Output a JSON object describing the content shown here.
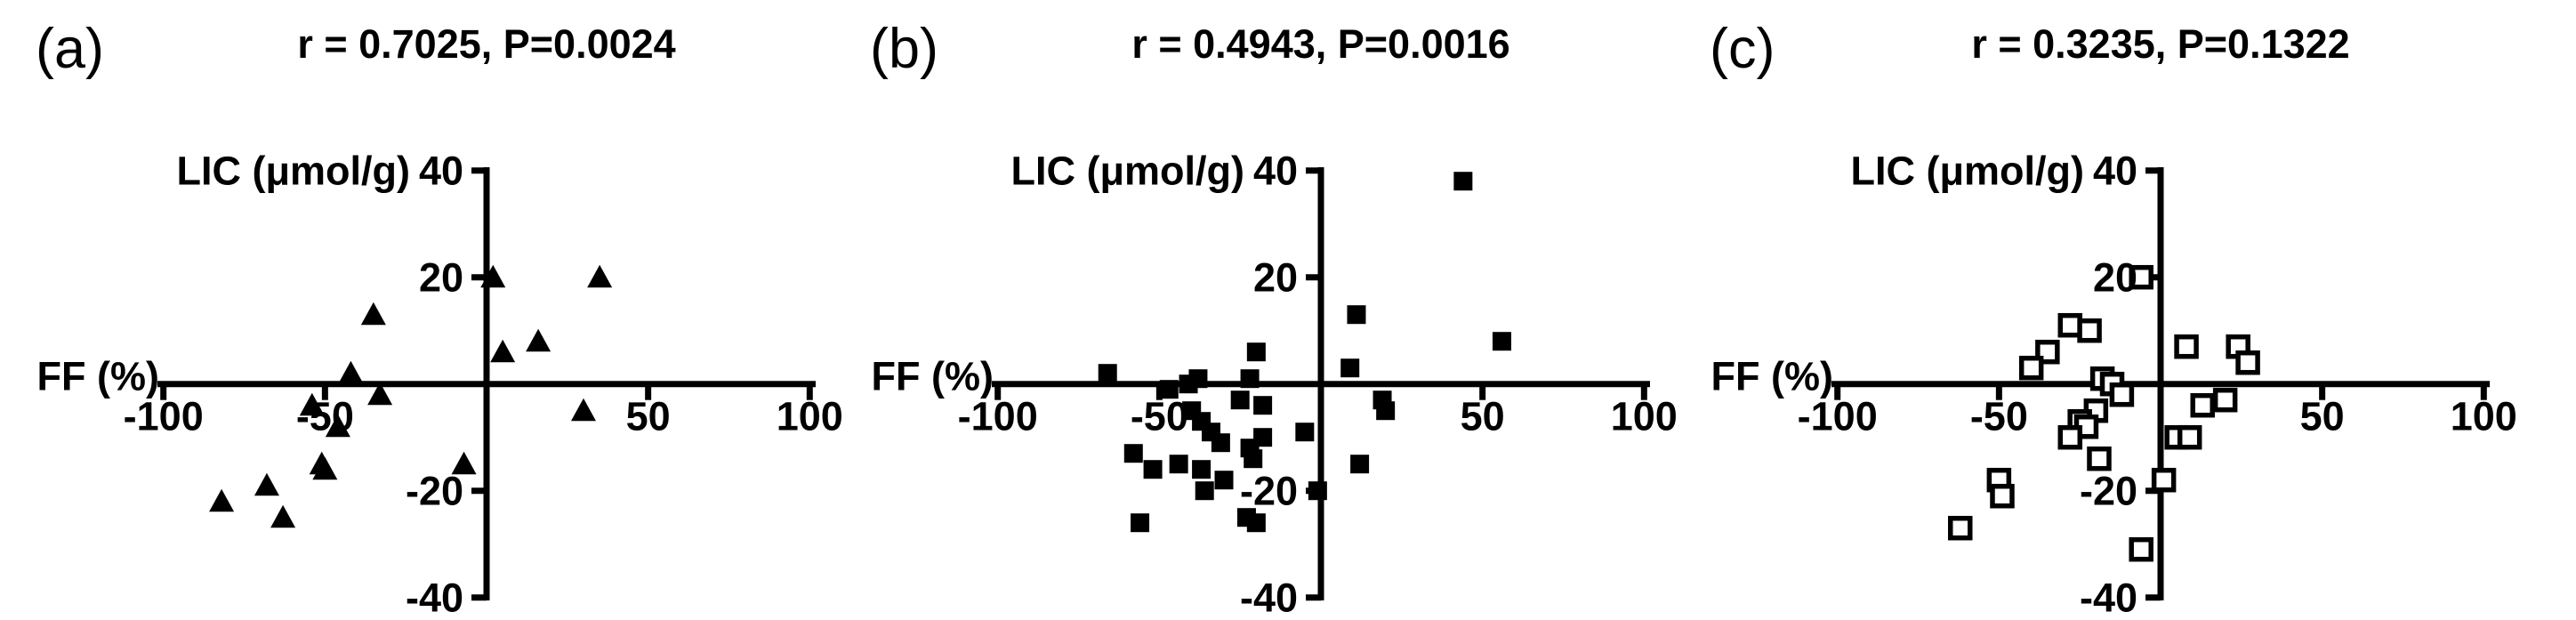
{
  "figure": {
    "background_color": "#ffffff",
    "ink_color": "#000000"
  },
  "chart_data": [
    {
      "type": "scatter",
      "panel_letter": "(a)",
      "title": "r = 0.7025, P=0.0024",
      "xlabel": "FF (%)",
      "ylabel": "LIC (μmol/g)",
      "xlim": [
        -100,
        100
      ],
      "ylim": [
        -40,
        40
      ],
      "x_tick_values": [
        -100,
        -50,
        50,
        100
      ],
      "x_tick_labels": [
        "-100",
        "-50",
        "50",
        "100"
      ],
      "y_tick_values": [
        40,
        20,
        -20,
        -40
      ],
      "y_tick_labels": [
        "40",
        "20",
        "-20",
        "-40"
      ],
      "grid": false,
      "legend": "none",
      "marker": "filled-triangle",
      "marker_color": "#000000",
      "points": [
        [
          2,
          20
        ],
        [
          35,
          20
        ],
        [
          -35,
          13
        ],
        [
          16,
          8
        ],
        [
          5,
          6
        ],
        [
          -42,
          2
        ],
        [
          -33,
          -2
        ],
        [
          -54,
          -4
        ],
        [
          30,
          -5
        ],
        [
          -46,
          -8
        ],
        [
          -7,
          -15
        ],
        [
          -51,
          -15
        ],
        [
          -50,
          -16
        ],
        [
          -68,
          -19
        ],
        [
          -82,
          -22
        ],
        [
          -63,
          -25
        ]
      ]
    },
    {
      "type": "scatter",
      "panel_letter": "(b)",
      "title": "r = 0.4943, P=0.0016",
      "xlabel": "FF (%)",
      "ylabel": "LIC (μmol/g)",
      "xlim": [
        -100,
        100
      ],
      "ylim": [
        -40,
        40
      ],
      "x_tick_values": [
        -100,
        -50,
        50,
        100
      ],
      "x_tick_labels": [
        "-100",
        "-50",
        "50",
        "100"
      ],
      "y_tick_values": [
        40,
        20,
        -20,
        -40
      ],
      "y_tick_labels": [
        "40",
        "20",
        "-20",
        "-40"
      ],
      "grid": false,
      "legend": "none",
      "marker": "filled-square",
      "marker_color": "#000000",
      "points": [
        [
          44,
          38
        ],
        [
          11,
          13
        ],
        [
          56,
          8
        ],
        [
          -20,
          6
        ],
        [
          9,
          3
        ],
        [
          -66,
          2
        ],
        [
          -22,
          1
        ],
        [
          -38,
          1
        ],
        [
          -41,
          0
        ],
        [
          -47,
          -1
        ],
        [
          19,
          -3
        ],
        [
          -25,
          -3
        ],
        [
          -18,
          -4
        ],
        [
          -40,
          -5
        ],
        [
          20,
          -5
        ],
        [
          -37,
          -7
        ],
        [
          -34,
          -9
        ],
        [
          -5,
          -9
        ],
        [
          -18,
          -10
        ],
        [
          -31,
          -11
        ],
        [
          -22,
          -12
        ],
        [
          -58,
          -13
        ],
        [
          -21,
          -14
        ],
        [
          -44,
          -15
        ],
        [
          12,
          -15
        ],
        [
          -52,
          -16
        ],
        [
          -37,
          -16
        ],
        [
          -30,
          -18
        ],
        [
          -36,
          -20
        ],
        [
          -1,
          -20
        ],
        [
          -23,
          -25
        ],
        [
          -20,
          -26
        ],
        [
          -56,
          -26
        ]
      ]
    },
    {
      "type": "scatter",
      "panel_letter": "(c)",
      "title": "r = 0.3235, P=0.1322",
      "xlabel": "FF (%)",
      "ylabel": "LIC (μmol/g)",
      "xlim": [
        -100,
        100
      ],
      "ylim": [
        -40,
        40
      ],
      "x_tick_values": [
        -100,
        -50,
        50,
        100
      ],
      "x_tick_labels": [
        "-100",
        "-50",
        "50",
        "100"
      ],
      "y_tick_values": [
        40,
        20,
        -20,
        -40
      ],
      "y_tick_labels": [
        "40",
        "20",
        "-20",
        "-40"
      ],
      "grid": false,
      "legend": "none",
      "marker": "open-square",
      "marker_color": "#000000",
      "points": [
        [
          -6,
          20
        ],
        [
          -28,
          11
        ],
        [
          -22,
          10
        ],
        [
          -35,
          6
        ],
        [
          8,
          7
        ],
        [
          24,
          7
        ],
        [
          27,
          4
        ],
        [
          -40,
          3
        ],
        [
          -18,
          1
        ],
        [
          -15,
          0
        ],
        [
          -12,
          -2
        ],
        [
          20,
          -3
        ],
        [
          13,
          -4
        ],
        [
          -20,
          -5
        ],
        [
          -25,
          -7
        ],
        [
          -23,
          -8
        ],
        [
          -28,
          -10
        ],
        [
          5,
          -10
        ],
        [
          9,
          -10
        ],
        [
          -19,
          -14
        ],
        [
          1,
          -18
        ],
        [
          -50,
          -18
        ],
        [
          -49,
          -21
        ],
        [
          -62,
          -27
        ],
        [
          -6,
          -31
        ]
      ]
    }
  ]
}
